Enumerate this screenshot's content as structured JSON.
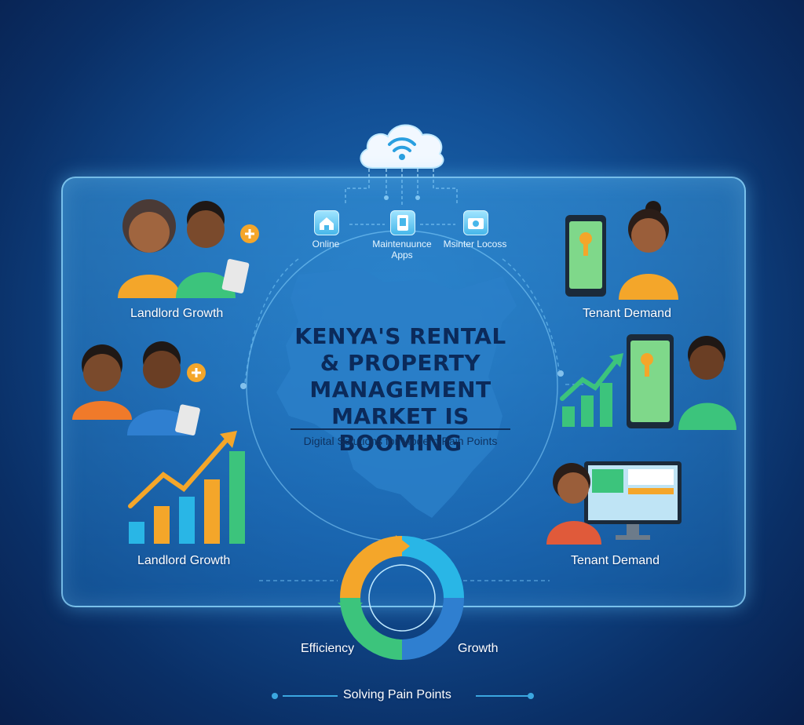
{
  "headline": {
    "line1": "KENYA'S RENTAL",
    "line2": "& PROPERTY",
    "line3": "MANAGEMENT",
    "line4": "MARKET IS BOOMING"
  },
  "subheadline": "Digital Solutions for Modern Pain Points",
  "top_features": [
    {
      "label": "Online",
      "icon": "house-icon"
    },
    {
      "label_line1": "Maintenuunce",
      "label_line2": "Apps",
      "icon": "tablet-icon"
    },
    {
      "label": "Msinter Locoss",
      "icon": "camera-icon"
    }
  ],
  "left_labels": {
    "upper": "Landlord Growth",
    "lower": "Landlord Growth"
  },
  "right_labels": {
    "upper": "Tenant Demand",
    "lower": "Tenant Demand"
  },
  "cycle": {
    "left": "Efficiency",
    "right": "Growth"
  },
  "footer": "Solving Pain Points",
  "colors": {
    "background": "#124f95",
    "accent": "#3ba7e0",
    "orange": "#f4a62a",
    "green": "#3cc47c",
    "headline": "#0b2a5a"
  }
}
